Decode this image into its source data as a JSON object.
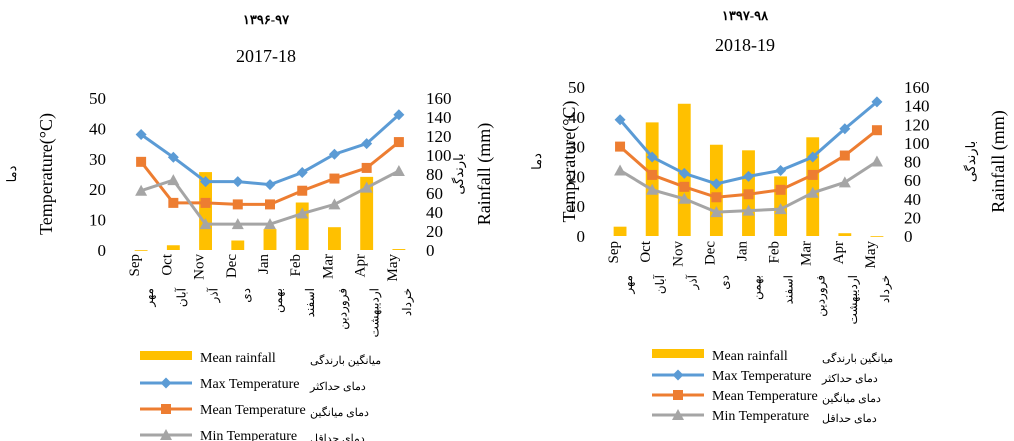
{
  "colors": {
    "rainfall": "#FFC000",
    "max": "#5B9BD5",
    "mean": "#ED7D31",
    "min": "#A5A5A5"
  },
  "chart_data": [
    {
      "type": "bar",
      "title": "2017-18",
      "title_persian": "۱۳۹۶-۹۷",
      "ylabel_left": "Temperature(°C)",
      "ylabel_left_persian": "دما",
      "ylabel_right": "Rainfall (mm)",
      "ylabel_right_persian": "بارندگی",
      "ylim_left": [
        0,
        50
      ],
      "ylim_right": [
        0,
        160
      ],
      "yticks_left": [
        "0",
        "10",
        "20",
        "30",
        "40",
        "50"
      ],
      "yticks_right": [
        "0",
        "20",
        "40",
        "60",
        "80",
        "100",
        "120",
        "140",
        "160"
      ],
      "categories": [
        "Sep",
        "Oct",
        "Nov",
        "Dec",
        "Jan",
        "Feb",
        "Mar",
        "Apr",
        "May"
      ],
      "categories_persian": [
        "مهر",
        "آبان",
        "آذر",
        "دی",
        "بهمن",
        "اسفند",
        "فروردین",
        "اردیبهشت",
        "خرداد"
      ],
      "rainfall": [
        0,
        5,
        82,
        10,
        22,
        50,
        24,
        77,
        1
      ],
      "series": [
        {
          "name": "Max Temperature",
          "name_persian": "دمای حداکثر",
          "values": [
            38,
            30.5,
            22.5,
            22.5,
            21.5,
            25.5,
            31.5,
            35,
            44.5
          ]
        },
        {
          "name": "Mean Temperature",
          "name_persian": "دمای میانگین",
          "values": [
            29,
            15.5,
            15.5,
            15,
            15,
            19.5,
            23.5,
            27,
            35.5
          ]
        },
        {
          "name": "Min Temperature",
          "name_persian": "دمای حداقل",
          "values": [
            19.5,
            23,
            8.5,
            8.5,
            8.5,
            12,
            15,
            20.5,
            26
          ]
        }
      ],
      "legend": [
        {
          "label": "Mean rainfall",
          "persian": "میانگین بارندگی",
          "kind": "bar"
        },
        {
          "label": "Max Temperature",
          "persian": "دمای حداکثر",
          "kind": "max"
        },
        {
          "label": "Mean Temperature",
          "persian": "دمای میانگین",
          "kind": "mean"
        },
        {
          "label": "Min Temperature",
          "persian": "دمای حداقل",
          "kind": "min"
        }
      ]
    },
    {
      "type": "bar",
      "title": "2018-19",
      "title_persian": "۱۳۹۷-۹۸",
      "ylabel_left": "Temperature(°C)",
      "ylabel_left_persian": "دما",
      "ylabel_right": "Rainfall (mm)",
      "ylabel_right_persian": "بارندگی",
      "ylim_left": [
        0,
        50
      ],
      "ylim_right": [
        0,
        160
      ],
      "yticks_left": [
        "0",
        "10",
        "20",
        "30",
        "40",
        "50"
      ],
      "yticks_right": [
        "0",
        "20",
        "40",
        "60",
        "80",
        "100",
        "120",
        "140",
        "160"
      ],
      "categories": [
        "Sep",
        "Oct",
        "Nov",
        "Dec",
        "Jan",
        "Feb",
        "Mar",
        "Apr",
        "May"
      ],
      "categories_persian": [
        "مهر",
        "آبان",
        "آذر",
        "دی",
        "بهمن",
        "اسفند",
        "فروردین",
        "اردیبهشت",
        "خرداد"
      ],
      "rainfall": [
        10,
        122,
        142,
        98,
        92,
        64,
        106,
        3,
        0
      ],
      "series": [
        {
          "name": "Max Temperature",
          "name_persian": "دمای حداکثر",
          "values": [
            39,
            26.5,
            21,
            17.5,
            20,
            22,
            26.5,
            36,
            45
          ]
        },
        {
          "name": "Mean Temperature",
          "name_persian": "دمای میانگین",
          "values": [
            30,
            20.5,
            16.5,
            13,
            14,
            15.5,
            20.5,
            27,
            35.5
          ]
        },
        {
          "name": "Min Temperature",
          "name_persian": "دمای حداقل",
          "values": [
            22,
            15.5,
            12.5,
            8,
            8.5,
            9,
            14.5,
            18,
            25
          ]
        }
      ],
      "legend": [
        {
          "label": "Mean rainfall",
          "persian": "میانگین بارندگی",
          "kind": "bar"
        },
        {
          "label": "Max Temperature",
          "persian": "دمای حداکثر",
          "kind": "max"
        },
        {
          "label": "Mean Temperature",
          "persian": "دمای میانگین",
          "kind": "mean"
        },
        {
          "label": "Min Temperature",
          "persian": "دمای حداقل",
          "kind": "min"
        }
      ]
    }
  ]
}
